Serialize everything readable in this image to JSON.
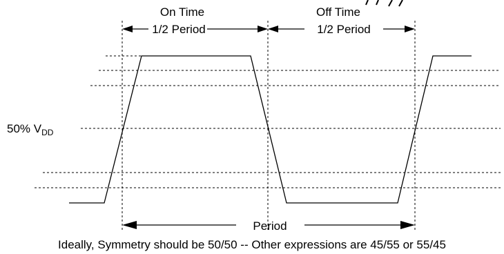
{
  "labels": {
    "on_time": "On Time",
    "off_time": "Off Time",
    "half_period_1": "1/2 Period",
    "half_period_2": "1/2 Period",
    "period": "Period",
    "vdd_prefix": "50% V",
    "vdd_subscript": "DD",
    "caption": "Ideally, Symmetry should be 50/50 -- Other expressions are 45/55 or 55/45"
  }
}
